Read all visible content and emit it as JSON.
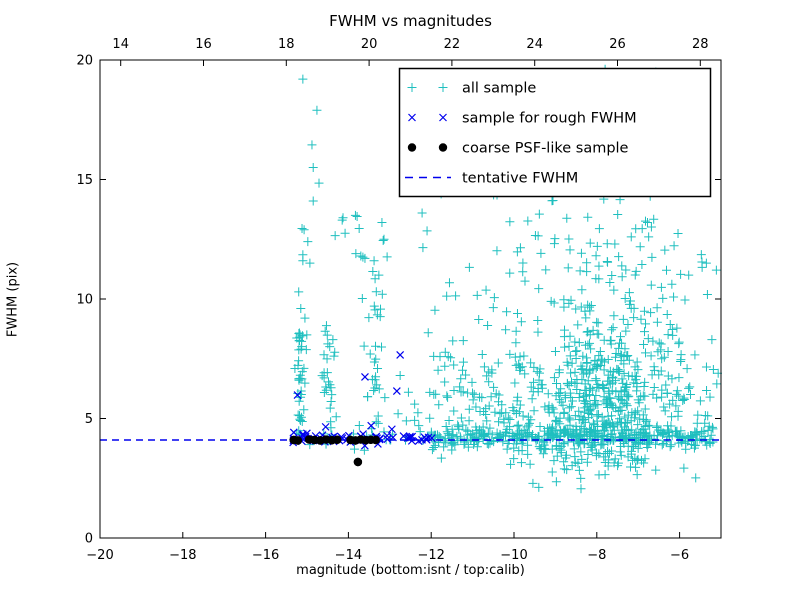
{
  "chart_data": {
    "type": "scatter",
    "title": "FWHM vs magnitudes",
    "xlabel": "magnitude (bottom:isnt / top:calib)",
    "ylabel": "FWHM (pix)",
    "xlim": [
      -20,
      -5
    ],
    "x2lim": [
      13.5,
      28.5
    ],
    "ylim": [
      0,
      20
    ],
    "xticks_bottom": [
      -20,
      -18,
      -16,
      -14,
      -12,
      -10,
      -8,
      -6
    ],
    "xticks_top": [
      14,
      16,
      18,
      20,
      22,
      24,
      26,
      28
    ],
    "yticks": [
      0,
      5,
      10,
      15,
      20
    ],
    "grid": false,
    "legend_position": "upper right",
    "colors": {
      "all_sample": "#1fbfbf",
      "rough_fwhm": "#0000ee",
      "coarse_psf": "#000000",
      "tentative": "#0000ee",
      "axis": "#000000"
    },
    "tentative_fwhm_value": 4.1,
    "series": [
      {
        "name": "all sample",
        "marker": "plus",
        "color": "#1fbfbf",
        "points": [
          [
            -15.1,
            19.2
          ],
          [
            -14.76,
            17.9
          ],
          [
            -14.88,
            16.45
          ],
          [
            -14.85,
            15.5
          ],
          [
            -14.71,
            14.85
          ],
          [
            -14.85,
            14.1
          ],
          [
            -15.12,
            12.95
          ],
          [
            -15.07,
            12.9
          ],
          [
            -14.98,
            12.4
          ],
          [
            -14.32,
            12.65
          ],
          [
            -14.15,
            13.3
          ],
          [
            -14.13,
            13.4
          ],
          [
            -14.08,
            12.75
          ],
          [
            -13.83,
            13.5
          ],
          [
            -13.79,
            13.45
          ],
          [
            -13.74,
            12.95
          ],
          [
            -13.19,
            13.2
          ],
          [
            -13.16,
            12.45
          ],
          [
            -13.14,
            12.5
          ],
          [
            -15.1,
            11.85
          ],
          [
            -15.1,
            11.6
          ],
          [
            -14.93,
            11.5
          ],
          [
            -15.15,
            9.6
          ],
          [
            -15.2,
            10.3
          ],
          [
            -15.05,
            9.2
          ],
          [
            -13.82,
            11.9
          ],
          [
            -13.65,
            11.75
          ],
          [
            -13.6,
            11.7
          ],
          [
            -13.7,
            11.8
          ],
          [
            -13.38,
            11.6
          ],
          [
            -13.41,
            11.15
          ],
          [
            -12.22,
            13.6
          ],
          [
            -12.1,
            12.85
          ],
          [
            -12.2,
            12.15
          ],
          [
            -11.62,
            17.6
          ],
          [
            -11.76,
            14.4
          ],
          [
            -10.41,
            14.35
          ],
          [
            -6.71,
            14.3
          ],
          [
            -12.8,
            5.2
          ],
          [
            -12.6,
            4.9
          ],
          [
            -12.4,
            5.6
          ],
          [
            -12.3,
            4.7
          ],
          [
            -12.55,
            6.1
          ],
          [
            -12.75,
            6.8
          ],
          [
            -5.46,
            11.55
          ],
          [
            -5.22,
            8.3
          ],
          [
            -5.63,
            7.66
          ],
          [
            -5.87,
            9.96
          ]
        ],
        "clusters": [
          {
            "mode": "col",
            "cx": -15.17,
            "xs": 0.06,
            "y0": 4.3,
            "y1": 8.6,
            "n": 42
          },
          {
            "mode": "col",
            "cx": -14.48,
            "xs": 0.1,
            "y0": 4.6,
            "y1": 9.0,
            "n": 26
          },
          {
            "mode": "col",
            "cx": -13.35,
            "xs": 0.12,
            "y0": 4.5,
            "y1": 8.1,
            "n": 20
          },
          {
            "mode": "col",
            "cx": -13.32,
            "xs": 0.15,
            "y0": 8.7,
            "y1": 11.8,
            "n": 12
          },
          {
            "mode": "band",
            "x0": -15.35,
            "x1": -12.0,
            "cy": 4.2,
            "ys": 0.28,
            "n": 25
          },
          {
            "mode": "band",
            "x0": -12.0,
            "x1": -5.15,
            "cy": 4.25,
            "ys": 0.22,
            "n": 330
          },
          {
            "mode": "gauss",
            "cx": -7.9,
            "cy": 5.8,
            "xs": 1.05,
            "ys": 1.5,
            "n": 500
          },
          {
            "mode": "gauss",
            "cx": -8.0,
            "cy": 10.3,
            "xs": 1.35,
            "ys": 1.5,
            "n": 110
          },
          {
            "mode": "box",
            "x0": -10.6,
            "x1": -6.0,
            "y0": 12.2,
            "y1": 16.3,
            "n": 45
          },
          {
            "mode": "box",
            "x0": -9.7,
            "x1": -6.3,
            "y0": 16.5,
            "y1": 19.85,
            "n": 16
          },
          {
            "mode": "gauss",
            "cx": -8.1,
            "cy": 3.4,
            "xs": 0.85,
            "ys": 0.32,
            "n": 40
          },
          {
            "mode": "gauss",
            "cx": -5.9,
            "cy": 5.8,
            "xs": 0.5,
            "ys": 1.3,
            "n": 24
          },
          {
            "mode": "gauss",
            "cx": -10.8,
            "cy": 5.3,
            "xs": 0.7,
            "ys": 0.95,
            "n": 70
          },
          {
            "mode": "box",
            "x0": -12.1,
            "x1": -10.3,
            "y0": 5.5,
            "y1": 10.8,
            "n": 26
          }
        ]
      },
      {
        "name": "sample for rough FWHM",
        "marker": "x",
        "color": "#0000ee",
        "points": [
          [
            -15.23,
            5.98
          ],
          [
            -13.6,
            6.74
          ],
          [
            -12.75,
            7.66
          ],
          [
            -12.83,
            6.15
          ],
          [
            -14.55,
            4.65
          ],
          [
            -13.45,
            4.7
          ],
          [
            -12.95,
            4.55
          ]
        ],
        "clusters": [
          {
            "mode": "band",
            "x0": -15.35,
            "x1": -11.95,
            "cy": 4.18,
            "ys": 0.1,
            "n": 60
          }
        ]
      },
      {
        "name": "coarse PSF-like sample",
        "marker": "dot",
        "color": "#000000",
        "points": [
          [
            -15.32,
            4.1
          ],
          [
            -15.22,
            4.08
          ],
          [
            -14.95,
            4.12
          ],
          [
            -14.82,
            4.1
          ],
          [
            -14.68,
            4.08
          ],
          [
            -14.54,
            4.12
          ],
          [
            -14.4,
            4.09
          ],
          [
            -14.27,
            4.11
          ],
          [
            -13.95,
            4.1
          ],
          [
            -13.83,
            4.08
          ],
          [
            -13.7,
            4.12
          ],
          [
            -13.58,
            4.09
          ],
          [
            -13.46,
            4.11
          ],
          [
            -13.34,
            4.1
          ],
          [
            -13.77,
            3.18
          ]
        ],
        "clusters": []
      },
      {
        "name": "tentative FWHM",
        "marker": "dashed-line",
        "color": "#0000ee",
        "hline_y": 4.1
      }
    ]
  }
}
